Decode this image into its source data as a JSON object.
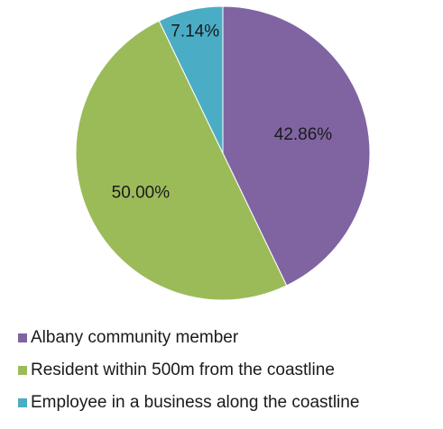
{
  "chart_data": {
    "type": "pie",
    "title": "",
    "categories": [
      "Albany community member",
      "Resident within 500m from the coastline",
      "Employee in a business along the coastline"
    ],
    "values": [
      42.86,
      50.0,
      7.14
    ],
    "data_labels": [
      "42.86%",
      "50.00%",
      "7.14%"
    ],
    "colors": [
      "#8064a2",
      "#9bbb59",
      "#4bacc6"
    ],
    "start_angle_deg": 0,
    "direction": "clockwise",
    "legend_position": "bottom-left"
  }
}
